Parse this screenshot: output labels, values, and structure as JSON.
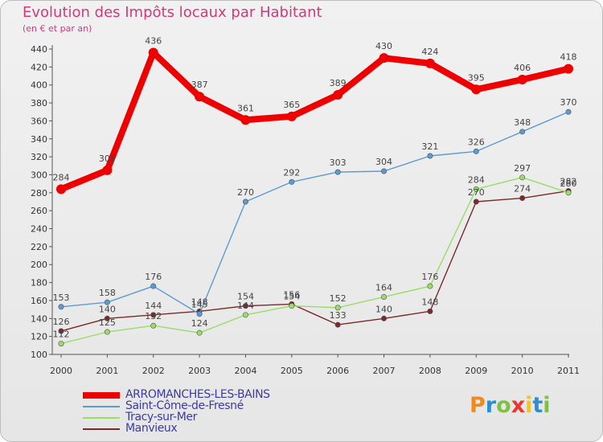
{
  "title": "Evolution des Impôts locaux par Habitant",
  "subtitle": "(en € et par an)",
  "logo": {
    "text": "Proxiti",
    "colors": [
      "#f08a1c",
      "#2a8fd6",
      "#7fc241",
      "#e63a2e",
      "#f3c41a",
      "#2a8fd6",
      "#7fc241"
    ]
  },
  "chart_data": {
    "type": "line",
    "x": [
      "2000",
      "2001",
      "2002",
      "2003",
      "2004",
      "2005",
      "2006",
      "2007",
      "2008",
      "2009",
      "2010",
      "2011"
    ],
    "ylim": [
      100,
      440
    ],
    "yticks": [
      100,
      120,
      140,
      160,
      180,
      200,
      220,
      240,
      260,
      280,
      300,
      320,
      340,
      360,
      380,
      400,
      420,
      440
    ],
    "grid": false,
    "legend_position": "bottom-left",
    "series": [
      {
        "name": "ARROMANCHES-LES-BAINS",
        "color": "#ee0000",
        "values": [
          284,
          305,
          436,
          387,
          361,
          365,
          389,
          430,
          424,
          395,
          406,
          418
        ]
      },
      {
        "name": "Saint-Côme-de-Fresné",
        "color": "#5b9bd5",
        "values": [
          153,
          158,
          176,
          145,
          270,
          292,
          303,
          304,
          321,
          326,
          348,
          370
        ]
      },
      {
        "name": "Tracy-sur-Mer",
        "color": "#99dd66",
        "values": [
          112,
          125,
          132,
          124,
          144,
          154,
          152,
          164,
          176,
          284,
          297,
          280
        ]
      },
      {
        "name": "Manvieux",
        "color": "#7a2a2a",
        "values": [
          126,
          140,
          144,
          148,
          154,
          156,
          133,
          140,
          148,
          270,
          274,
          282
        ]
      }
    ]
  }
}
